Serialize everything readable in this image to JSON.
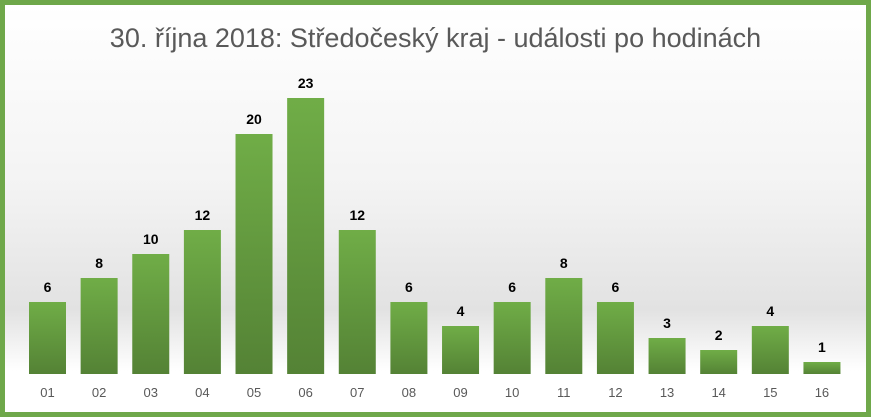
{
  "chart_data": {
    "type": "bar",
    "title": "30. října 2018: Středočeský kraj - události po hodinách",
    "categories": [
      "01",
      "02",
      "03",
      "04",
      "05",
      "06",
      "07",
      "08",
      "09",
      "10",
      "11",
      "12",
      "13",
      "14",
      "15",
      "16"
    ],
    "values": [
      6,
      8,
      10,
      12,
      20,
      23,
      12,
      6,
      4,
      6,
      8,
      6,
      3,
      2,
      4,
      1
    ],
    "xlabel": "",
    "ylabel": "",
    "ylim": [
      0,
      23
    ],
    "grid": false,
    "legend": "none",
    "colors": {
      "bar_top": "#70ad47",
      "bar_bottom": "#548235",
      "border": "#6fa84a"
    }
  }
}
